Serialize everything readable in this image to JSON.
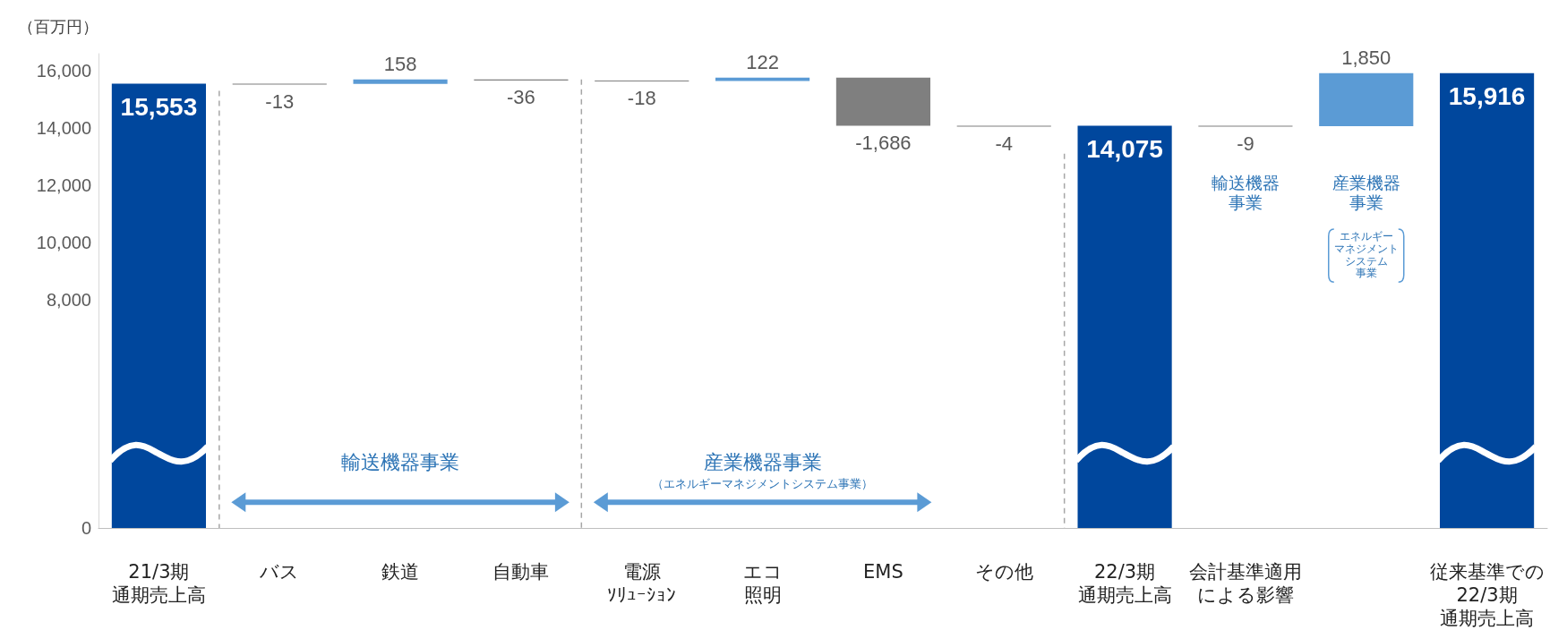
{
  "chart_data": {
    "type": "bar",
    "ylabel": "（百万円）",
    "categories": [
      "21/3期通期売上高",
      "バス",
      "鉄道",
      "自動車",
      "電源ｿﾘｭｰｼｮﾝ",
      "エコ照明",
      "EMS",
      "その他",
      "22/3期通期売上高",
      "会計基準適用による影響",
      null,
      "従来基準での22/3期通期売上高"
    ],
    "values": [
      15553,
      -13,
      158,
      -36,
      -18,
      122,
      -1686,
      -4,
      14075,
      -9,
      1850,
      15916
    ],
    "base": [
      0,
      15553,
      15540,
      15698,
      15662,
      15644,
      15766,
      14080,
      0,
      14075,
      14066,
      0
    ],
    "colors": [
      "#00479d",
      "#7f7f7f",
      "#5b9bd5",
      "#7f7f7f",
      "#7f7f7f",
      "#5b9bd5",
      "#7f7f7f",
      "#7f7f7f",
      "#00479d",
      "#7f7f7f",
      "#5b9bd5",
      "#00479d"
    ],
    "value_labels": [
      "15,553",
      "-13",
      "158",
      "-36",
      "-18",
      "122",
      "-1,686",
      "-4",
      "14,075",
      "-9",
      "1,850",
      "15,916"
    ],
    "ylim": [
      0,
      16600
    ],
    "yticks": [
      0,
      {
        "value": 8000,
        "label": "8,000"
      },
      {
        "value": 10000,
        "label": "10,000"
      },
      {
        "value": 12000,
        "label": "12,000"
      },
      {
        "value": 14000,
        "label": "14,000"
      },
      {
        "value": 16000,
        "label": "16,000"
      }
    ],
    "annotations": [
      "輸送機器事業",
      "産業機器事業",
      "（エネルギーマネジメントシステム事業）",
      "輸送機器事業",
      "産業機器事業",
      "エネルギーマネジメントシステム事業"
    ]
  }
}
